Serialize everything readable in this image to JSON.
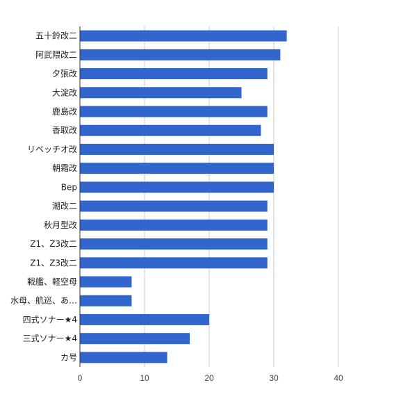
{
  "chart_data": {
    "type": "bar",
    "orientation": "horizontal",
    "categories": [
      "五十鈴改二",
      "阿武隈改二",
      "夕張改",
      "大淀改",
      "鹿島改",
      "香取改",
      "リベッチオ改",
      "朝霜改",
      "Bep",
      "潮改二",
      "秋月型改",
      "Z1、Z3改二",
      "Z1、Z3改二",
      "戦艦、軽空母",
      "水母、航巡、あ…",
      "四式ソナー★4",
      "三式ソナー★4",
      "カ号"
    ],
    "values": [
      32,
      31,
      29,
      25,
      29,
      28,
      30,
      30,
      30,
      29,
      29,
      29,
      29,
      8,
      8,
      20,
      17,
      13.5
    ],
    "xlim": [
      0,
      50
    ],
    "xticks": [
      "0",
      "10",
      "20",
      "30",
      "40"
    ],
    "title": "",
    "xlabel": "",
    "ylabel": "",
    "grid": true,
    "legend": "none",
    "bar_color": "#3366cc",
    "grid_color": "#cccccc",
    "axis_color": "#333333"
  }
}
